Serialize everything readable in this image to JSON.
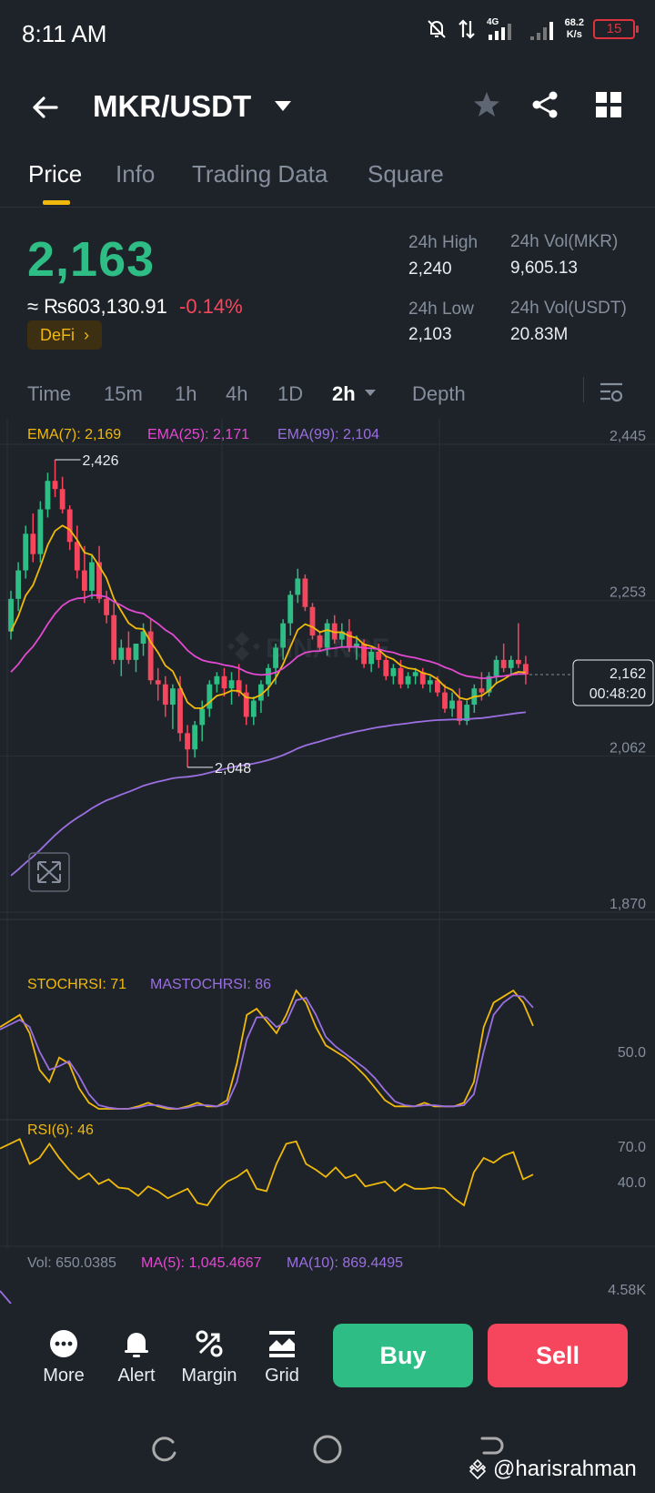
{
  "status_bar": {
    "time": "8:11 AM",
    "network": "4G",
    "speed_value": "68.2",
    "speed_unit": "K/s",
    "battery": "15"
  },
  "header": {
    "pair": "MKR/USDT"
  },
  "tabs": [
    {
      "label": "Price",
      "active": true
    },
    {
      "label": "Info",
      "active": false
    },
    {
      "label": "Trading Data",
      "active": false
    },
    {
      "label": "Square",
      "active": false
    }
  ],
  "summary": {
    "last_price": "2,163",
    "fiat_price": "≈ ₨603,130.91",
    "change": "-0.14%",
    "tag": "DeFi",
    "tag_arrow": "›",
    "high_label": "24h High",
    "high_value": "2,240",
    "low_label": "24h Low",
    "low_value": "2,103",
    "vol_mkr_label": "24h Vol(MKR)",
    "vol_mkr_value": "9,605.13",
    "vol_usdt_label": "24h Vol(USDT)",
    "vol_usdt_value": "20.83M"
  },
  "intervals": [
    {
      "label": "Time",
      "active": false
    },
    {
      "label": "15m",
      "active": false
    },
    {
      "label": "1h",
      "active": false
    },
    {
      "label": "4h",
      "active": false
    },
    {
      "label": "1D",
      "active": false
    },
    {
      "label": "2h",
      "active": true
    },
    {
      "label": "Depth",
      "active": false
    }
  ],
  "colors": {
    "up": "#2ebd85",
    "down": "#f6465d",
    "ema7": "#f0b90b",
    "ema25": "#e14ad0",
    "ema99": "#9a6fe0",
    "background": "#1e2329"
  },
  "chart_data": [
    {
      "type": "candlestick",
      "legend": [
        {
          "label": "EMA(7): 2,169",
          "color": "#f0b90b"
        },
        {
          "label": "EMA(25): 2,171",
          "color": "#e14ad0"
        },
        {
          "label": "EMA(99): 2,104",
          "color": "#9a6fe0"
        }
      ],
      "y_ticks": [
        "2,445",
        "2,253",
        "2,062",
        "1,870"
      ],
      "ylim": [
        1870,
        2445
      ],
      "max_label": "2,426",
      "min_label": "2,048",
      "current_price": "2,162",
      "countdown": "00:48:20",
      "candles": [
        [
          2215,
          2265,
          2205,
          2255
        ],
        [
          2255,
          2300,
          2240,
          2290
        ],
        [
          2290,
          2345,
          2280,
          2335
        ],
        [
          2335,
          2360,
          2300,
          2310
        ],
        [
          2310,
          2375,
          2300,
          2365
        ],
        [
          2365,
          2410,
          2355,
          2400
        ],
        [
          2400,
          2426,
          2380,
          2390
        ],
        [
          2390,
          2405,
          2360,
          2365
        ],
        [
          2365,
          2370,
          2315,
          2325
        ],
        [
          2325,
          2345,
          2280,
          2290
        ],
        [
          2290,
          2320,
          2250,
          2265
        ],
        [
          2265,
          2310,
          2255,
          2300
        ],
        [
          2300,
          2320,
          2250,
          2255
        ],
        [
          2255,
          2265,
          2225,
          2235
        ],
        [
          2235,
          2250,
          2175,
          2180
        ],
        [
          2180,
          2205,
          2160,
          2195
        ],
        [
          2195,
          2215,
          2175,
          2180
        ],
        [
          2180,
          2200,
          2165,
          2200
        ],
        [
          2200,
          2225,
          2185,
          2215
        ],
        [
          2215,
          2230,
          2150,
          2155
        ],
        [
          2155,
          2170,
          2130,
          2150
        ],
        [
          2150,
          2160,
          2110,
          2125
        ],
        [
          2125,
          2150,
          2095,
          2145
        ],
        [
          2145,
          2160,
          2080,
          2090
        ],
        [
          2090,
          2100,
          2048,
          2070
        ],
        [
          2070,
          2105,
          2060,
          2100
        ],
        [
          2100,
          2130,
          2080,
          2120
        ],
        [
          2120,
          2155,
          2110,
          2150
        ],
        [
          2150,
          2165,
          2140,
          2160
        ],
        [
          2160,
          2170,
          2135,
          2145
        ],
        [
          2145,
          2165,
          2125,
          2155
        ],
        [
          2155,
          2175,
          2135,
          2140
        ],
        [
          2140,
          2150,
          2100,
          2110
        ],
        [
          2110,
          2135,
          2100,
          2130
        ],
        [
          2130,
          2155,
          2115,
          2150
        ],
        [
          2150,
          2175,
          2135,
          2170
        ],
        [
          2170,
          2200,
          2150,
          2195
        ],
        [
          2195,
          2230,
          2180,
          2225
        ],
        [
          2225,
          2265,
          2210,
          2260
        ],
        [
          2260,
          2292,
          2250,
          2280
        ],
        [
          2280,
          2285,
          2240,
          2245
        ],
        [
          2245,
          2250,
          2205,
          2210
        ],
        [
          2210,
          2215,
          2190,
          2195
        ],
        [
          2195,
          2230,
          2185,
          2225
        ],
        [
          2225,
          2235,
          2200,
          2205
        ],
        [
          2205,
          2225,
          2195,
          2215
        ],
        [
          2215,
          2230,
          2190,
          2195
        ],
        [
          2195,
          2210,
          2180,
          2200
        ],
        [
          2200,
          2205,
          2170,
          2175
        ],
        [
          2175,
          2195,
          2165,
          2190
        ],
        [
          2190,
          2200,
          2170,
          2180
        ],
        [
          2180,
          2185,
          2155,
          2160
        ],
        [
          2160,
          2175,
          2150,
          2170
        ],
        [
          2170,
          2180,
          2145,
          2150
        ],
        [
          2150,
          2165,
          2145,
          2160
        ],
        [
          2160,
          2170,
          2150,
          2165
        ],
        [
          2165,
          2170,
          2145,
          2150
        ],
        [
          2150,
          2160,
          2140,
          2155
        ],
        [
          2155,
          2160,
          2135,
          2140
        ],
        [
          2140,
          2150,
          2115,
          2120
        ],
        [
          2120,
          2140,
          2110,
          2130
        ],
        [
          2130,
          2145,
          2100,
          2105
        ],
        [
          2105,
          2130,
          2100,
          2125
        ],
        [
          2125,
          2150,
          2115,
          2145
        ],
        [
          2145,
          2165,
          2130,
          2140
        ],
        [
          2140,
          2165,
          2135,
          2160
        ],
        [
          2160,
          2185,
          2150,
          2180
        ],
        [
          2180,
          2200,
          2165,
          2170
        ],
        [
          2170,
          2185,
          2160,
          2180
        ],
        [
          2180,
          2225,
          2170,
          2175
        ],
        [
          2175,
          2185,
          2150,
          2162
        ]
      ]
    },
    {
      "type": "line",
      "legend": [
        {
          "label": "STOCHRSI: 71",
          "color": "#f0b90b"
        },
        {
          "label": "MASTOCHRSI: 86",
          "color": "#9a6fe0"
        }
      ],
      "y_ticks": [
        "50.0"
      ],
      "ylim": [
        0,
        100
      ],
      "series": [
        {
          "values": [
            70,
            75,
            80,
            65,
            35,
            25,
            45,
            40,
            20,
            8,
            3,
            3,
            3,
            3,
            5,
            8,
            5,
            3,
            3,
            5,
            8,
            5,
            5,
            10,
            40,
            80,
            85,
            75,
            65,
            80,
            100,
            90,
            70,
            55,
            50,
            45,
            38,
            30,
            20,
            10,
            5,
            5,
            5,
            8,
            5,
            5,
            5,
            8,
            25,
            70,
            90,
            95,
            100,
            90,
            71
          ]
        },
        {
          "values": [
            68,
            72,
            76,
            70,
            50,
            35,
            38,
            42,
            30,
            15,
            6,
            4,
            3,
            3,
            4,
            6,
            6,
            4,
            3,
            4,
            6,
            6,
            5,
            7,
            25,
            60,
            78,
            78,
            70,
            74,
            92,
            94,
            80,
            62,
            54,
            48,
            42,
            36,
            28,
            18,
            9,
            6,
            5,
            6,
            6,
            5,
            5,
            6,
            15,
            50,
            80,
            90,
            96,
            95,
            86
          ]
        }
      ]
    },
    {
      "type": "line",
      "legend": [
        {
          "label": "RSI(6): 46",
          "color": "#f0b90b"
        }
      ],
      "y_ticks": [
        "70.0",
        "40.0"
      ],
      "ylim": [
        0,
        100
      ],
      "series": [
        {
          "values": [
            68,
            72,
            76,
            55,
            60,
            72,
            60,
            50,
            42,
            47,
            38,
            42,
            35,
            34,
            28,
            36,
            32,
            26,
            30,
            34,
            22,
            20,
            32,
            40,
            44,
            50,
            34,
            32,
            55,
            72,
            74,
            55,
            50,
            44,
            52,
            43,
            46,
            36,
            38,
            40,
            32,
            38,
            34,
            34,
            35,
            34,
            26,
            20,
            48,
            60,
            56,
            62,
            65,
            42,
            46
          ]
        }
      ]
    },
    {
      "type": "bar",
      "legend": [
        {
          "label": "Vol: 650.0385",
          "color": "#848e9c"
        },
        {
          "label": "MA(5): 1,045.4667",
          "color": "#e14ad0"
        },
        {
          "label": "MA(10): 869.4495",
          "color": "#9a6fe0"
        }
      ],
      "y_ticks": [
        "4.58K"
      ]
    }
  ],
  "bottom_bar": {
    "more": "More",
    "alert": "Alert",
    "margin": "Margin",
    "grid": "Grid",
    "buy": "Buy",
    "sell": "Sell"
  },
  "watermark": "@harisrahman"
}
